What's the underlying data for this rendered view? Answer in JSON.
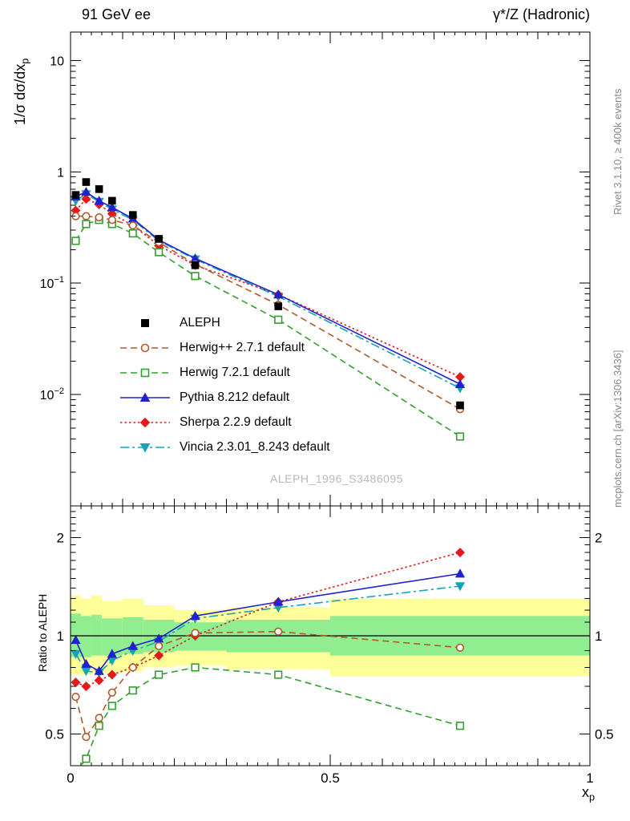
{
  "header": {
    "left_title": "91 GeV ee",
    "right_title": "γ*/Z (Hadronic)"
  },
  "side_notes": {
    "top_right": "Rivet 3.1.10, ≥ 400k events",
    "bottom_right": "mcplots.cern.ch [arXiv:1306.3436]"
  },
  "watermark": "ALEPH_1996_S3486095",
  "colors": {
    "frame": "#000000",
    "reference_line": "#000000",
    "band_yellow": "#ffff99",
    "band_green": "#90ee90",
    "side_note": "#8a8a8a",
    "watermark": "#b9b9b9"
  },
  "axes": {
    "x": {
      "min": 0,
      "max": 1,
      "label_main": "x",
      "label_sub": "p",
      "major": [
        {
          "v": 0,
          "label": "0"
        },
        {
          "v": 0.5,
          "label": "0.5"
        },
        {
          "v": 1,
          "label": "1"
        }
      ]
    },
    "y_top": {
      "scale": "log",
      "min": 0.001,
      "max": 18,
      "title_main": "1/σ dσ/dx",
      "title_sub": "p",
      "major": [
        {
          "v": 10,
          "label": "10"
        },
        {
          "v": 1,
          "label": "1"
        },
        {
          "v": 0.1,
          "label": "10",
          "exp": "−1"
        },
        {
          "v": 0.01,
          "label": "10",
          "exp": "−2"
        }
      ]
    },
    "y_ratio": {
      "scale": "log",
      "min": 0.4,
      "max": 2.5,
      "title": "Ratio to ALEPH",
      "major": [
        {
          "v": 2,
          "label": "2"
        },
        {
          "v": 1,
          "label": "1"
        },
        {
          "v": 0.5,
          "label": "0.5"
        }
      ]
    }
  },
  "chart_data": {
    "type": "line",
    "x": [
      0.01,
      0.03,
      0.055,
      0.08,
      0.12,
      0.17,
      0.24,
      0.4,
      0.75
    ],
    "xlim": [
      0,
      1
    ],
    "top_panel": {
      "ylabel": "1/σ dσ/dx_p",
      "yscale": "log",
      "ylim": [
        0.001,
        18
      ]
    },
    "ratio_panel": {
      "ylabel": "Ratio to ALEPH",
      "yscale": "log",
      "ylim": [
        0.4,
        2.5
      ],
      "reference": 1,
      "bands": [
        {
          "x0": 0.0,
          "x1": 0.02,
          "yellow": [
            0.76,
            1.33
          ],
          "green": [
            0.86,
            1.17
          ]
        },
        {
          "x0": 0.02,
          "x1": 0.04,
          "yellow": [
            0.76,
            1.3
          ],
          "green": [
            0.86,
            1.15
          ]
        },
        {
          "x0": 0.04,
          "x1": 0.06,
          "yellow": [
            0.77,
            1.33
          ],
          "green": [
            0.87,
            1.16
          ]
        },
        {
          "x0": 0.06,
          "x1": 0.1,
          "yellow": [
            0.77,
            1.28
          ],
          "green": [
            0.87,
            1.13
          ]
        },
        {
          "x0": 0.1,
          "x1": 0.14,
          "yellow": [
            0.78,
            1.3
          ],
          "green": [
            0.88,
            1.14
          ]
        },
        {
          "x0": 0.14,
          "x1": 0.2,
          "yellow": [
            0.8,
            1.24
          ],
          "green": [
            0.89,
            1.12
          ]
        },
        {
          "x0": 0.2,
          "x1": 0.3,
          "yellow": [
            0.81,
            1.2
          ],
          "green": [
            0.9,
            1.1
          ]
        },
        {
          "x0": 0.3,
          "x1": 0.5,
          "yellow": [
            0.79,
            1.22
          ],
          "green": [
            0.89,
            1.12
          ]
        },
        {
          "x0": 0.5,
          "x1": 1.0,
          "yellow": [
            0.75,
            1.3
          ],
          "green": [
            0.87,
            1.15
          ]
        }
      ]
    },
    "series": [
      {
        "key": "aleph",
        "label": "ALEPH",
        "color": "#000000",
        "marker": "square-filled",
        "line": "none",
        "values": [
          0.62,
          0.81,
          0.7,
          0.55,
          0.41,
          0.25,
          0.145,
          0.062,
          0.008
        ],
        "ratio": null
      },
      {
        "key": "herwigpp",
        "label": "Herwig++ 2.7.1 default",
        "color": "#b15928",
        "marker": "circle-open",
        "line": "dashed",
        "values": [
          0.4,
          0.4,
          0.39,
          0.37,
          0.33,
          0.233,
          0.148,
          0.064,
          0.0074
        ],
        "ratio": [
          0.65,
          0.49,
          0.56,
          0.67,
          0.8,
          0.93,
          1.02,
          1.03,
          0.92
        ]
      },
      {
        "key": "herwig7",
        "label": "Herwig 7.2.1 default",
        "color": "#33a02c",
        "marker": "square-open",
        "line": "dashed",
        "values": [
          0.24,
          0.34,
          0.37,
          0.34,
          0.28,
          0.19,
          0.116,
          0.047,
          0.0042
        ],
        "ratio": [
          0.38,
          0.42,
          0.53,
          0.61,
          0.68,
          0.76,
          0.8,
          0.76,
          0.53
        ]
      },
      {
        "key": "pythia",
        "label": "Pythia 8.212 default",
        "color": "#2222cc",
        "marker": "triangle-up-filled",
        "line": "solid",
        "values": [
          0.6,
          0.66,
          0.55,
          0.48,
          0.38,
          0.245,
          0.167,
          0.079,
          0.0124
        ],
        "ratio": [
          0.97,
          0.82,
          0.78,
          0.88,
          0.93,
          0.98,
          1.15,
          1.27,
          1.55
        ]
      },
      {
        "key": "sherpa",
        "label": "Sherpa 2.2.9 default",
        "color": "#e31a1c",
        "marker": "diamond-filled",
        "line": "dotted",
        "values": [
          0.45,
          0.57,
          0.51,
          0.42,
          0.33,
          0.218,
          0.145,
          0.079,
          0.0144
        ],
        "ratio": [
          0.72,
          0.7,
          0.73,
          0.76,
          0.8,
          0.87,
          1.0,
          1.27,
          1.8
        ]
      },
      {
        "key": "vincia",
        "label": "Vincia 2.3.01_8.243 default",
        "color": "#17a2b8",
        "marker": "triangle-down-filled",
        "line": "dashdot",
        "values": [
          0.55,
          0.63,
          0.54,
          0.46,
          0.37,
          0.24,
          0.164,
          0.076,
          0.0114
        ],
        "ratio": [
          0.88,
          0.78,
          0.77,
          0.84,
          0.9,
          0.96,
          1.13,
          1.22,
          1.42
        ]
      }
    ]
  }
}
